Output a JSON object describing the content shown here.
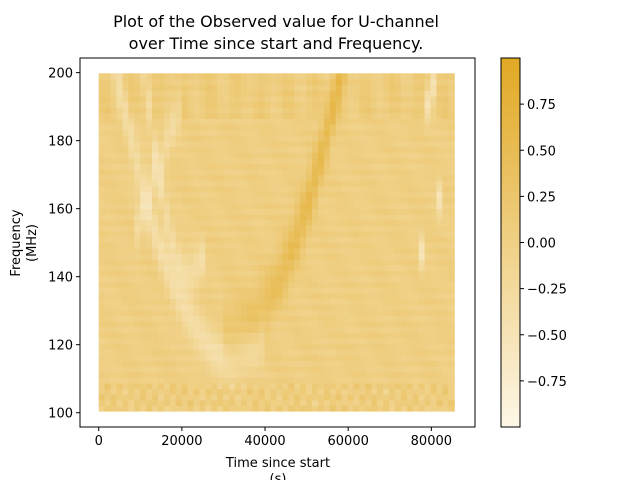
{
  "chart_data": {
    "type": "heatmap",
    "title_lines": [
      "Plot of the Observed value for U-channel",
      "over Time since start and Frequency."
    ],
    "xlabel_lines": [
      "Time since start",
      "(s)"
    ],
    "ylabel_lines": [
      "Frequency",
      "(MHz)"
    ],
    "xlim": [
      -4500,
      90500
    ],
    "ylim": [
      95.8,
      204.3
    ],
    "x_data_range": [
      0,
      85500
    ],
    "y_data_range": [
      100.5,
      199.8
    ],
    "x_ticks": [
      0,
      20000,
      40000,
      60000,
      80000
    ],
    "x_tick_labels": [
      "0",
      "20000",
      "40000",
      "60000",
      "80000"
    ],
    "y_ticks": [
      100,
      120,
      140,
      160,
      180,
      200
    ],
    "y_tick_labels": [
      "100",
      "120",
      "140",
      "160",
      "180",
      "200"
    ],
    "colorbar": {
      "range": [
        -1,
        1
      ],
      "ticks": [
        -0.75,
        -0.5,
        -0.25,
        0.0,
        0.25,
        0.5,
        0.75
      ],
      "tick_labels": [
        "−0.75",
        "−0.50",
        "−0.25",
        "0.00",
        "0.25",
        "0.50",
        "0.75"
      ],
      "color_low": "#fdf7e6",
      "color_high": "#e1a823"
    },
    "features": {
      "dark_arc_center_time": 32000,
      "dark_arc_min_frequency": 124,
      "dark_band_peak_time": 52000,
      "bright_arc_left_top_time": 12000,
      "bright_arc_right_top_time": 80000,
      "rfi_band_high": [
        186,
        199.8
      ],
      "rfi_band_low": [
        100.5,
        108
      ]
    },
    "grid": false,
    "legend": "colorbar-right"
  }
}
